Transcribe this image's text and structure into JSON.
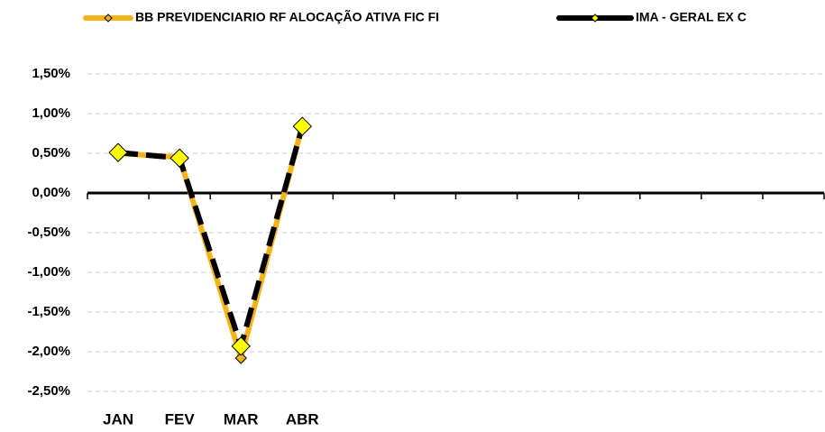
{
  "chart_data": {
    "type": "line",
    "categories": [
      "JAN",
      "FEV",
      "MAR",
      "ABR",
      null,
      null,
      null,
      null,
      null,
      null,
      null,
      null
    ],
    "series": [
      {
        "name": "BB PREVIDENCIARIO RF ALOCAÇÃO ATIVA FIC FI",
        "color": "#f5b31a",
        "marker_color": "#f5b31a",
        "values": [
          0.5,
          0.45,
          -2.08,
          0.85,
          null,
          null,
          null,
          null,
          null,
          null,
          null,
          null
        ]
      },
      {
        "name": "IMA - GERAL EX C",
        "color": "#000000",
        "marker_color": "#ffff00",
        "values": [
          0.51,
          0.44,
          -1.93,
          0.84,
          null,
          null,
          null,
          null,
          null,
          null,
          null,
          null
        ]
      }
    ],
    "ylim": [
      -2.5,
      1.5
    ],
    "yticks": [
      {
        "value": 1.5,
        "label": "1,50%"
      },
      {
        "value": 1.0,
        "label": "1,00%"
      },
      {
        "value": 0.5,
        "label": "0,50%"
      },
      {
        "value": 0,
        "label": "0,00%"
      },
      {
        "value": -0.5,
        "label": "-0,50%"
      },
      {
        "value": -1.0,
        "label": "-1,00%"
      },
      {
        "value": -1.5,
        "label": "-1,50%"
      },
      {
        "value": -2.0,
        "label": "-2,00%"
      },
      {
        "value": -2.5,
        "label": "-2,50%"
      }
    ],
    "grid": true,
    "legend": "top"
  }
}
